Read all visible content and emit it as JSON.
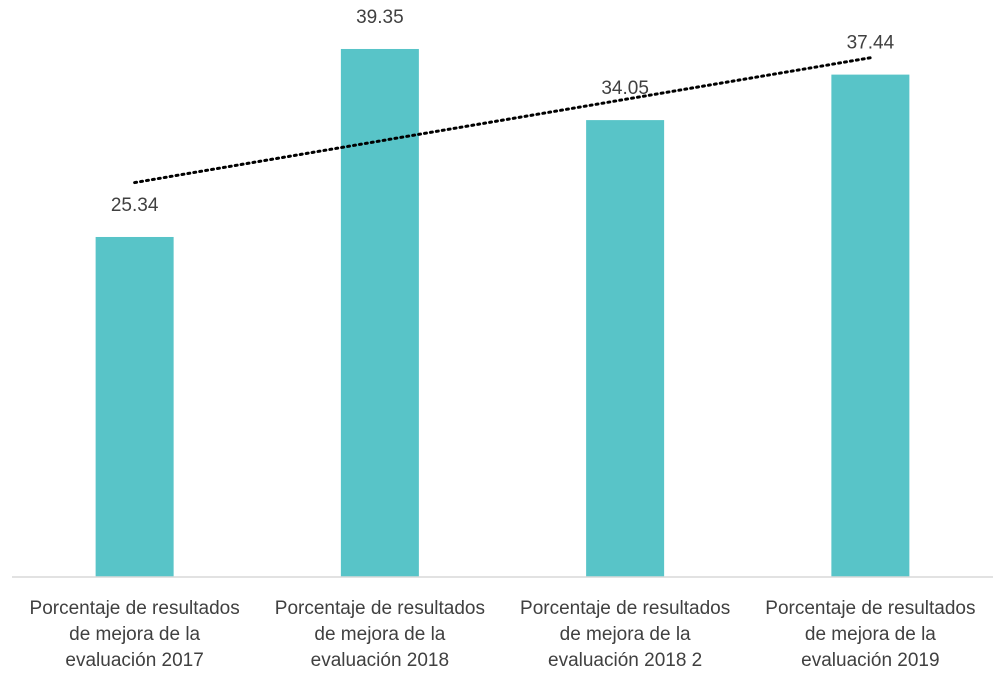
{
  "chart_data": {
    "type": "bar",
    "categories": [
      "Porcentaje de resultados\nde mejora de la\nevaluación 2017",
      "Porcentaje de resultados\nde mejora de la\nevaluación 2018",
      "Porcentaje de resultados\nde mejora de la\nevaluación 2018 2",
      "Porcentaje de resultados\nde mejora de la\nevaluación 2019"
    ],
    "values": [
      25.34,
      39.35,
      34.05,
      37.44
    ],
    "color": "#58c4c8",
    "ylim": [
      0,
      43
    ],
    "trendline": true
  }
}
